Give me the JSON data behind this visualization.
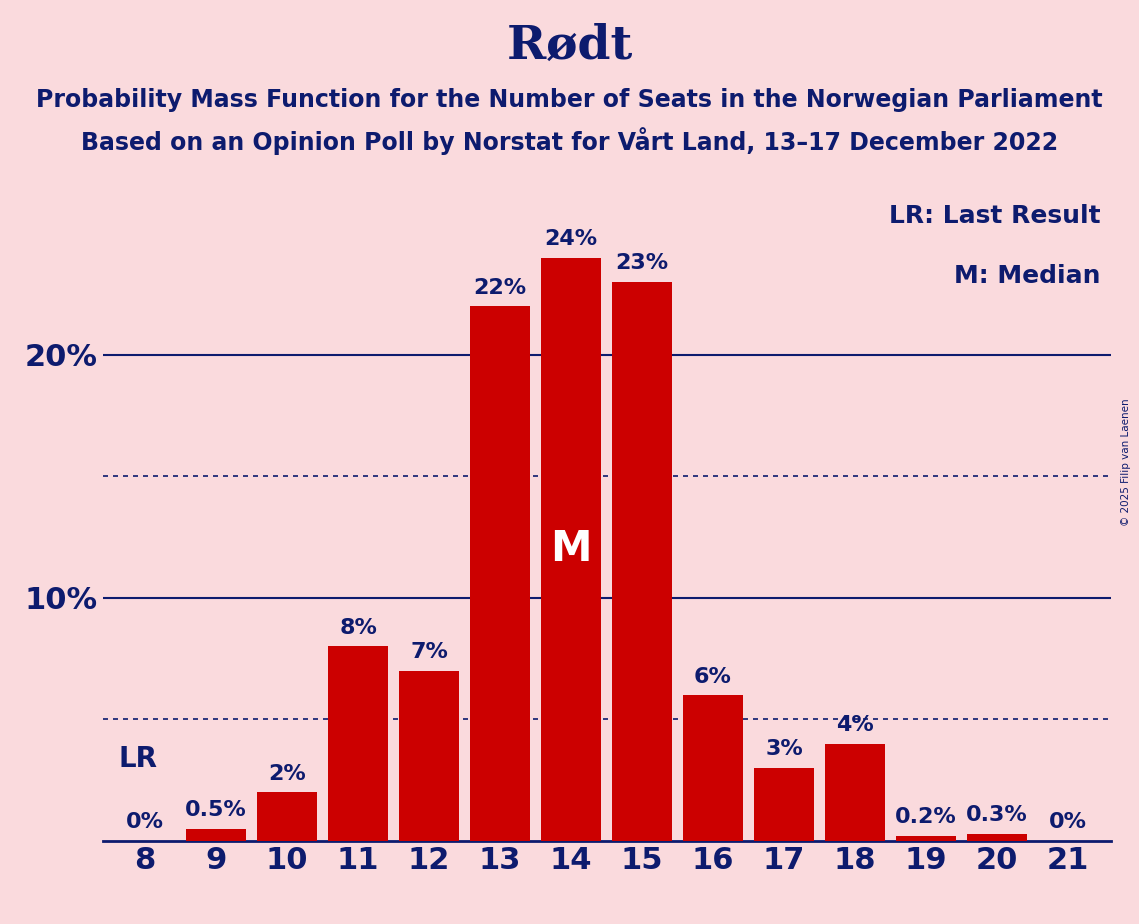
{
  "title": "Rødt",
  "subtitle1": "Probability Mass Function for the Number of Seats in the Norwegian Parliament",
  "subtitle2": "Based on an Opinion Poll by Norstat for Vårt Land, 13–17 December 2022",
  "watermark": "© 2025 Filip van Laenen",
  "seats": [
    8,
    9,
    10,
    11,
    12,
    13,
    14,
    15,
    16,
    17,
    18,
    19,
    20,
    21
  ],
  "probabilities": [
    0.0,
    0.5,
    2.0,
    8.0,
    7.0,
    22.0,
    24.0,
    23.0,
    6.0,
    3.0,
    4.0,
    0.2,
    0.3,
    0.0
  ],
  "bar_color": "#CC0000",
  "background_color": "#FADADD",
  "text_color": "#0D1B6E",
  "bar_labels": [
    "0%",
    "0.5%",
    "2%",
    "8%",
    "7%",
    "22%",
    "24%",
    "23%",
    "6%",
    "3%",
    "4%",
    "0.2%",
    "0.3%",
    "0%"
  ],
  "lr_seat": 8,
  "lr_label": "LR",
  "median_seat": 14,
  "median_label": "M",
  "ylim": [
    0,
    27
  ],
  "title_fontsize": 34,
  "subtitle_fontsize": 17,
  "bar_label_fontsize": 16,
  "axis_label_fontsize": 22,
  "legend_fontsize": 18,
  "median_fontsize": 30,
  "lr_label_fontsize": 20
}
